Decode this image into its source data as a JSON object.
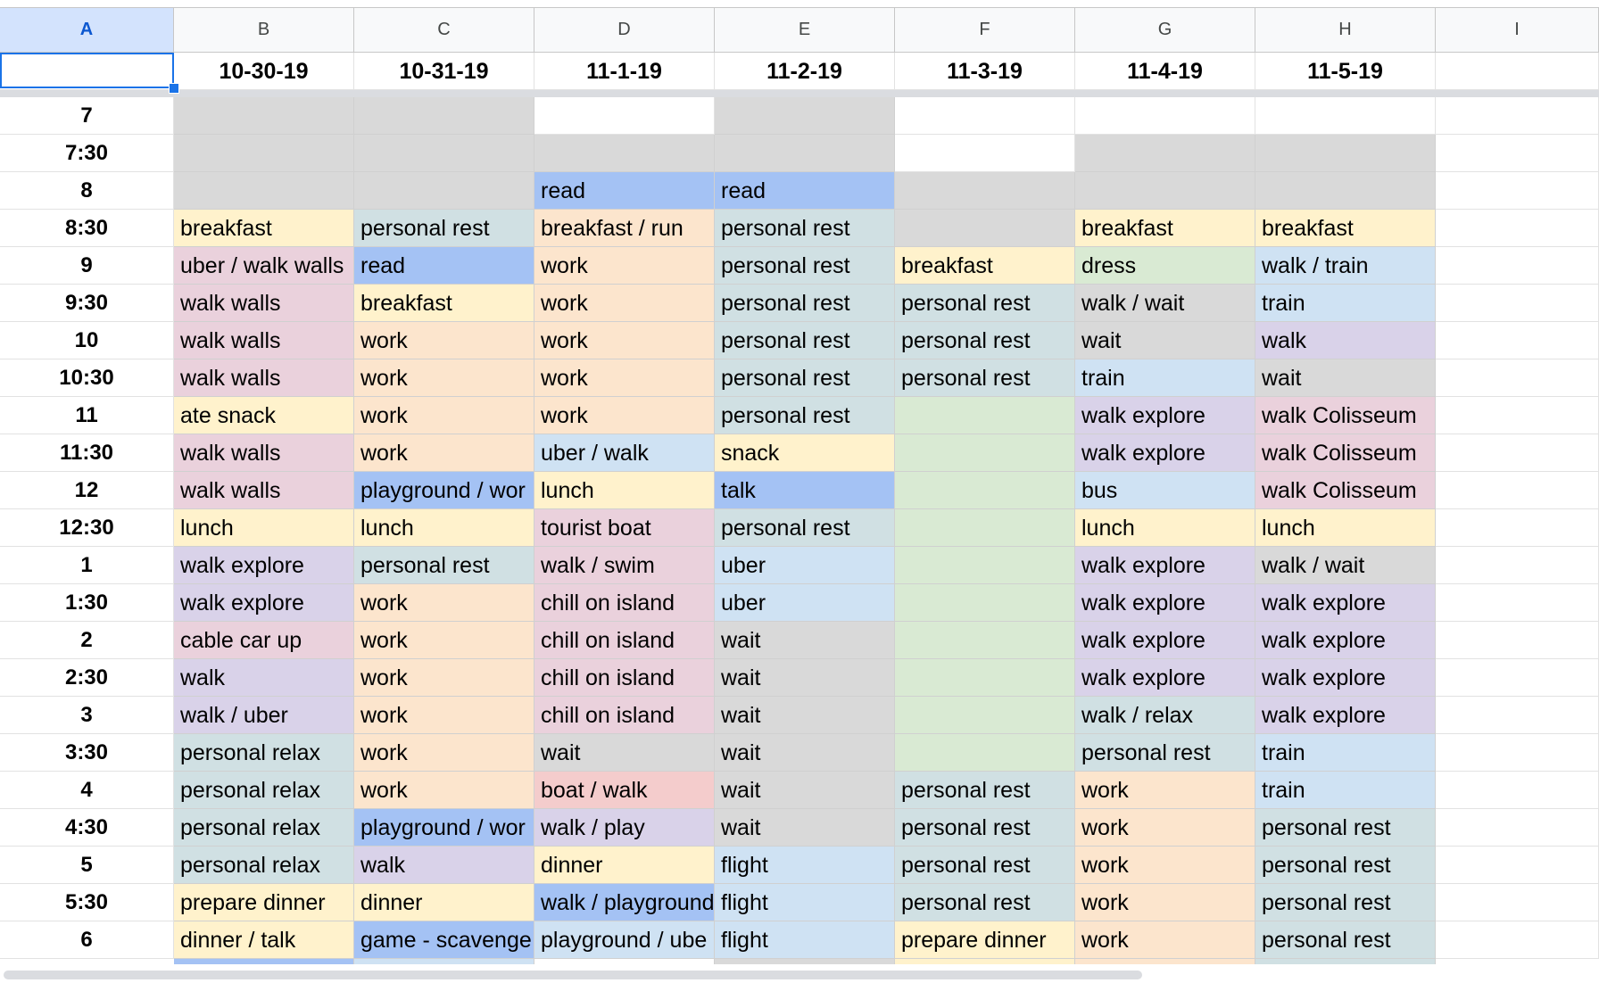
{
  "sheet": {
    "column_letters": [
      "A",
      "B",
      "C",
      "D",
      "E",
      "F",
      "G",
      "H",
      "I"
    ],
    "selected_column": "A",
    "dates": [
      "",
      "10-30-19",
      "10-31-19",
      "11-1-19",
      "11-2-19",
      "11-3-19",
      "11-4-19",
      "11-5-19"
    ]
  },
  "colors": {
    "gray": "#d9d9d9",
    "blue": "#a4c2f4",
    "lightblue": "#cfe2f3",
    "yellow": "#fff2cc",
    "orange": "#fce5cd",
    "pink": "#ead1dc",
    "purple": "#d9d2e9",
    "teal": "#d0e0e3",
    "green": "#d9ead3",
    "red": "#f4cccc",
    "white": "#ffffff"
  },
  "rows": [
    {
      "time": "7",
      "cells": [
        [
          "",
          "gray"
        ],
        [
          "",
          "gray"
        ],
        [
          "",
          "white"
        ],
        [
          "",
          "gray"
        ],
        [
          "",
          "white"
        ],
        [
          "",
          "white"
        ],
        [
          "",
          "white"
        ]
      ]
    },
    {
      "time": "7:30",
      "cells": [
        [
          "",
          "gray"
        ],
        [
          "",
          "gray"
        ],
        [
          "",
          "gray"
        ],
        [
          "",
          "gray"
        ],
        [
          "",
          "white"
        ],
        [
          "",
          "gray"
        ],
        [
          "",
          "gray"
        ]
      ]
    },
    {
      "time": "8",
      "cells": [
        [
          "",
          "gray"
        ],
        [
          "",
          "gray"
        ],
        [
          "read",
          "blue"
        ],
        [
          "read",
          "blue"
        ],
        [
          "",
          "gray"
        ],
        [
          "",
          "gray"
        ],
        [
          "",
          "gray"
        ]
      ]
    },
    {
      "time": "8:30",
      "cells": [
        [
          "breakfast",
          "yellow"
        ],
        [
          "personal rest",
          "teal"
        ],
        [
          "breakfast / run",
          "orange"
        ],
        [
          "personal rest",
          "teal"
        ],
        [
          "",
          "gray"
        ],
        [
          "breakfast",
          "yellow"
        ],
        [
          "breakfast",
          "yellow"
        ]
      ]
    },
    {
      "time": "9",
      "cells": [
        [
          "uber / walk walls",
          "pink"
        ],
        [
          "read",
          "blue"
        ],
        [
          "work",
          "orange"
        ],
        [
          "personal rest",
          "teal"
        ],
        [
          "breakfast",
          "yellow"
        ],
        [
          "dress",
          "green"
        ],
        [
          "walk / train",
          "lightblue"
        ]
      ]
    },
    {
      "time": "9:30",
      "cells": [
        [
          "walk walls",
          "pink"
        ],
        [
          "breakfast",
          "yellow"
        ],
        [
          "work",
          "orange"
        ],
        [
          "personal rest",
          "teal"
        ],
        [
          "personal rest",
          "teal"
        ],
        [
          "walk / wait",
          "gray"
        ],
        [
          "train",
          "lightblue"
        ]
      ]
    },
    {
      "time": "10",
      "cells": [
        [
          "walk walls",
          "pink"
        ],
        [
          "work",
          "orange"
        ],
        [
          "work",
          "orange"
        ],
        [
          "personal rest",
          "teal"
        ],
        [
          "personal rest",
          "teal"
        ],
        [
          "wait",
          "gray"
        ],
        [
          "walk",
          "purple"
        ]
      ]
    },
    {
      "time": "10:30",
      "cells": [
        [
          "walk walls",
          "pink"
        ],
        [
          "work",
          "orange"
        ],
        [
          "work",
          "orange"
        ],
        [
          "personal rest",
          "teal"
        ],
        [
          "personal rest",
          "teal"
        ],
        [
          "train",
          "lightblue"
        ],
        [
          "wait",
          "gray"
        ]
      ]
    },
    {
      "time": "11",
      "cells": [
        [
          "ate snack",
          "yellow"
        ],
        [
          "work",
          "orange"
        ],
        [
          "work",
          "orange"
        ],
        [
          "personal rest",
          "teal"
        ],
        [
          "",
          "green"
        ],
        [
          "walk explore",
          "purple"
        ],
        [
          "walk Colisseum",
          "pink"
        ]
      ]
    },
    {
      "time": "11:30",
      "cells": [
        [
          "walk walls",
          "pink"
        ],
        [
          "work",
          "orange"
        ],
        [
          "uber / walk",
          "lightblue"
        ],
        [
          "snack",
          "yellow"
        ],
        [
          "",
          "green"
        ],
        [
          "walk explore",
          "purple"
        ],
        [
          "walk Colisseum",
          "pink"
        ]
      ]
    },
    {
      "time": "12",
      "cells": [
        [
          "walk walls",
          "pink"
        ],
        [
          "playground / wor",
          "blue"
        ],
        [
          "lunch",
          "yellow"
        ],
        [
          "talk",
          "blue"
        ],
        [
          "",
          "green"
        ],
        [
          "bus",
          "lightblue"
        ],
        [
          "walk Colisseum",
          "pink"
        ]
      ]
    },
    {
      "time": "12:30",
      "cells": [
        [
          "lunch",
          "yellow"
        ],
        [
          "lunch",
          "yellow"
        ],
        [
          "tourist boat",
          "pink"
        ],
        [
          "personal rest",
          "teal"
        ],
        [
          "",
          "green"
        ],
        [
          "lunch",
          "yellow"
        ],
        [
          "lunch",
          "yellow"
        ]
      ]
    },
    {
      "time": "1",
      "cells": [
        [
          "walk explore",
          "purple"
        ],
        [
          "personal rest",
          "teal"
        ],
        [
          "walk / swim",
          "pink"
        ],
        [
          "uber",
          "lightblue"
        ],
        [
          "",
          "green"
        ],
        [
          "walk explore",
          "purple"
        ],
        [
          "walk / wait",
          "gray"
        ]
      ]
    },
    {
      "time": "1:30",
      "cells": [
        [
          "walk explore",
          "purple"
        ],
        [
          "work",
          "orange"
        ],
        [
          "chill on island",
          "pink"
        ],
        [
          "uber",
          "lightblue"
        ],
        [
          "",
          "green"
        ],
        [
          "walk explore",
          "purple"
        ],
        [
          "walk explore",
          "purple"
        ]
      ]
    },
    {
      "time": "2",
      "cells": [
        [
          "cable car up",
          "pink"
        ],
        [
          "work",
          "orange"
        ],
        [
          "chill on island",
          "pink"
        ],
        [
          "wait",
          "gray"
        ],
        [
          "",
          "green"
        ],
        [
          "walk explore",
          "purple"
        ],
        [
          "walk explore",
          "purple"
        ]
      ]
    },
    {
      "time": "2:30",
      "cells": [
        [
          "walk",
          "purple"
        ],
        [
          "work",
          "orange"
        ],
        [
          "chill on island",
          "pink"
        ],
        [
          "wait",
          "gray"
        ],
        [
          "",
          "green"
        ],
        [
          "walk explore",
          "purple"
        ],
        [
          "walk explore",
          "purple"
        ]
      ]
    },
    {
      "time": "3",
      "cells": [
        [
          "walk / uber",
          "purple"
        ],
        [
          "work",
          "orange"
        ],
        [
          "chill on island",
          "pink"
        ],
        [
          "wait",
          "gray"
        ],
        [
          "",
          "green"
        ],
        [
          "walk / relax",
          "teal"
        ],
        [
          "walk explore",
          "purple"
        ]
      ]
    },
    {
      "time": "3:30",
      "cells": [
        [
          "personal relax",
          "teal"
        ],
        [
          "work",
          "orange"
        ],
        [
          "wait",
          "gray"
        ],
        [
          "wait",
          "gray"
        ],
        [
          "",
          "green"
        ],
        [
          "personal rest",
          "teal"
        ],
        [
          "train",
          "lightblue"
        ]
      ]
    },
    {
      "time": "4",
      "cells": [
        [
          "personal relax",
          "teal"
        ],
        [
          "work",
          "orange"
        ],
        [
          "boat / walk",
          "red"
        ],
        [
          "wait",
          "gray"
        ],
        [
          "personal rest",
          "teal"
        ],
        [
          "work",
          "orange"
        ],
        [
          "train",
          "lightblue"
        ]
      ]
    },
    {
      "time": "4:30",
      "cells": [
        [
          "personal relax",
          "teal"
        ],
        [
          "playground / wor",
          "blue"
        ],
        [
          "walk / play",
          "purple"
        ],
        [
          "wait",
          "gray"
        ],
        [
          "personal rest",
          "teal"
        ],
        [
          "work",
          "orange"
        ],
        [
          "personal rest",
          "teal"
        ]
      ]
    },
    {
      "time": "5",
      "cells": [
        [
          "personal relax",
          "teal"
        ],
        [
          "walk",
          "purple"
        ],
        [
          "dinner",
          "yellow"
        ],
        [
          "flight",
          "lightblue"
        ],
        [
          "personal rest",
          "teal"
        ],
        [
          "work",
          "orange"
        ],
        [
          "personal rest",
          "teal"
        ]
      ]
    },
    {
      "time": "5:30",
      "cells": [
        [
          "prepare dinner",
          "yellow"
        ],
        [
          "dinner",
          "yellow"
        ],
        [
          "walk / playground",
          "blue"
        ],
        [
          "flight",
          "lightblue"
        ],
        [
          "personal rest",
          "teal"
        ],
        [
          "work",
          "orange"
        ],
        [
          "personal rest",
          "teal"
        ]
      ]
    },
    {
      "time": "6",
      "cells": [
        [
          "dinner / talk",
          "yellow"
        ],
        [
          "game - scavenge",
          "blue"
        ],
        [
          "playground / ube",
          "lightblue"
        ],
        [
          "flight",
          "lightblue"
        ],
        [
          "prepare dinner",
          "yellow"
        ],
        [
          "work",
          "orange"
        ],
        [
          "personal rest",
          "teal"
        ]
      ]
    }
  ]
}
